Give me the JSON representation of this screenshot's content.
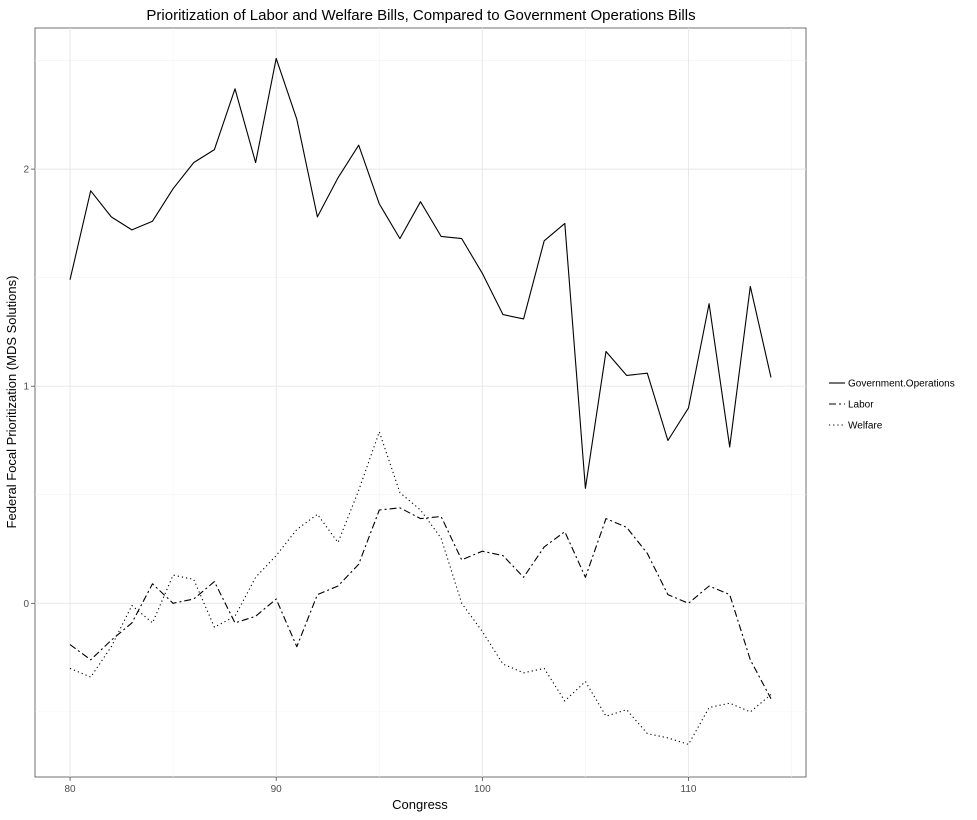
{
  "chart_data": {
    "type": "line",
    "title": "Prioritization of Labor and Welfare Bills, Compared to Government Operations Bills",
    "xlabel": "Congress",
    "ylabel": "Federal Focal Prioritization (MDS Solutions)",
    "xlim": [
      78.3,
      115.7
    ],
    "ylim": [
      -0.8,
      2.65
    ],
    "x_ticks": [
      80,
      90,
      100,
      110
    ],
    "y_ticks": [
      0,
      1,
      2
    ],
    "x_tick_labels": [
      "80",
      "90",
      "100",
      "110"
    ],
    "y_tick_labels": [
      "0",
      "1",
      "2"
    ],
    "grid": true,
    "legend_position": "right",
    "x": [
      80,
      81,
      82,
      83,
      84,
      85,
      86,
      87,
      88,
      89,
      90,
      91,
      92,
      93,
      94,
      95,
      96,
      97,
      98,
      99,
      100,
      101,
      102,
      103,
      104,
      105,
      106,
      107,
      108,
      109,
      110,
      111,
      112,
      113,
      114
    ],
    "series": [
      {
        "name": "Government.Operations",
        "line_style": "solid",
        "values": [
          1.49,
          1.9,
          1.78,
          1.72,
          1.76,
          1.91,
          2.03,
          2.09,
          2.37,
          2.03,
          2.51,
          2.23,
          1.78,
          1.96,
          2.11,
          1.84,
          1.68,
          1.85,
          1.69,
          1.68,
          1.52,
          1.33,
          1.31,
          1.67,
          1.75,
          0.53,
          1.16,
          1.05,
          1.06,
          0.75,
          0.9,
          1.38,
          0.72,
          1.46,
          1.04
        ]
      },
      {
        "name": "Labor",
        "line_style": "dashdot",
        "values": [
          -0.19,
          -0.26,
          -0.17,
          -0.09,
          0.09,
          0.0,
          0.02,
          0.1,
          -0.09,
          -0.06,
          0.02,
          -0.2,
          0.04,
          0.08,
          0.18,
          0.43,
          0.44,
          0.39,
          0.4,
          0.2,
          0.24,
          0.22,
          0.12,
          0.26,
          0.33,
          0.12,
          0.39,
          0.35,
          0.23,
          0.04,
          0.0,
          0.08,
          0.04,
          -0.26,
          -0.44
        ]
      },
      {
        "name": "Welfare",
        "line_style": "dotted",
        "values": [
          -0.3,
          -0.34,
          -0.2,
          -0.01,
          -0.09,
          0.13,
          0.11,
          -0.11,
          -0.06,
          0.12,
          0.22,
          0.34,
          0.41,
          0.28,
          0.52,
          0.79,
          0.51,
          0.43,
          0.3,
          0.0,
          -0.13,
          -0.28,
          -0.32,
          -0.3,
          -0.45,
          -0.36,
          -0.52,
          -0.49,
          -0.6,
          -0.62,
          -0.65,
          -0.48,
          -0.46,
          -0.5,
          -0.42
        ]
      }
    ]
  }
}
